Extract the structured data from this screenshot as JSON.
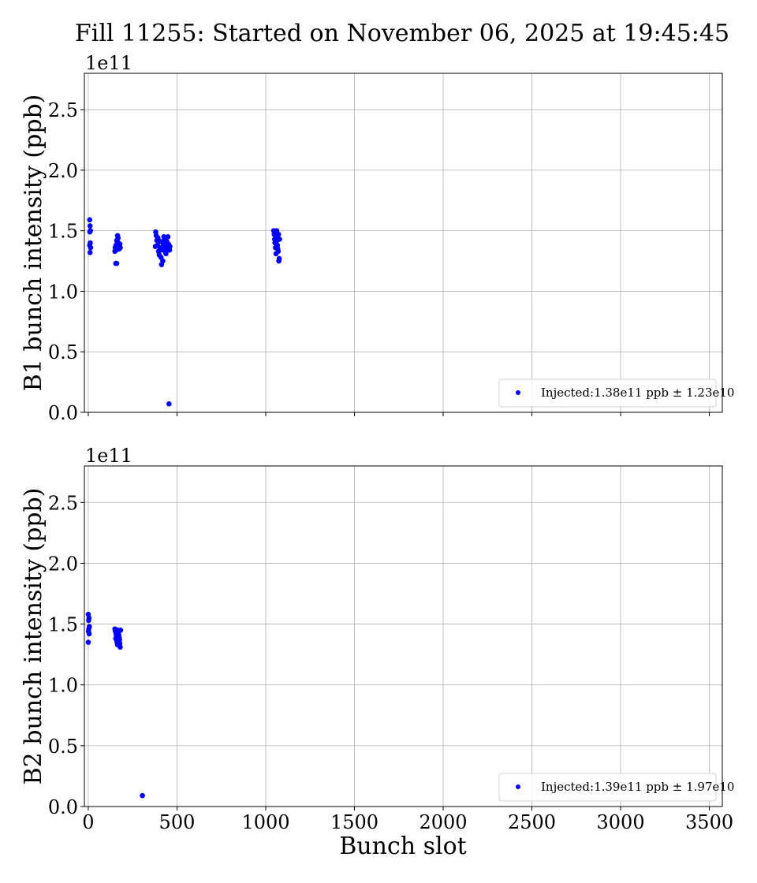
{
  "chart_data": [
    {
      "type": "scatter",
      "title": "Fill 11255: Started on November 06, 2025 at 19:45:45",
      "xlabel": "",
      "ylabel": "B1 bunch intensity (ppb)",
      "offset_label": "1e11",
      "xlim": [
        -22,
        3573
      ],
      "ylim": [
        0,
        2.8
      ],
      "xticks": [
        0,
        500,
        1000,
        1500,
        2000,
        2500,
        3000,
        3500
      ],
      "yticks": [
        "0.0",
        "0.5",
        "1.0",
        "1.5",
        "2.0",
        "2.5"
      ],
      "grid": true,
      "legend_position": "lower-right",
      "color": "#0000ff",
      "series": [
        {
          "name": "Injected:1.38e11 ppb ± 1.23e10",
          "points": [
            [
              8,
              1.59
            ],
            [
              10,
              1.54
            ],
            [
              12,
              1.5
            ],
            [
              9,
              1.49
            ],
            [
              11,
              1.4
            ],
            [
              8,
              1.38
            ],
            [
              13,
              1.36
            ],
            [
              10,
              1.32
            ],
            [
              155,
              1.23
            ],
            [
              160,
              1.23
            ],
            [
              152,
              1.36
            ],
            [
              156,
              1.38
            ],
            [
              160,
              1.42
            ],
            [
              165,
              1.46
            ],
            [
              168,
              1.44
            ],
            [
              170,
              1.4
            ],
            [
              172,
              1.37
            ],
            [
              175,
              1.35
            ],
            [
              178,
              1.39
            ],
            [
              158,
              1.34
            ],
            [
              163,
              1.41
            ],
            [
              180,
              1.36
            ],
            [
              150,
              1.33
            ],
            [
              167,
              1.38
            ],
            [
              380,
              1.49
            ],
            [
              383,
              1.46
            ],
            [
              386,
              1.42
            ],
            [
              390,
              1.38
            ],
            [
              378,
              1.37
            ],
            [
              393,
              1.44
            ],
            [
              396,
              1.33
            ],
            [
              400,
              1.3
            ],
            [
              404,
              1.36
            ],
            [
              407,
              1.41
            ],
            [
              410,
              1.28
            ],
            [
              413,
              1.22
            ],
            [
              416,
              1.34
            ],
            [
              420,
              1.25
            ],
            [
              423,
              1.39
            ],
            [
              426,
              1.45
            ],
            [
              430,
              1.43
            ],
            [
              433,
              1.36
            ],
            [
              436,
              1.32
            ],
            [
              440,
              1.38
            ],
            [
              443,
              1.41
            ],
            [
              446,
              1.35
            ],
            [
              449,
              1.45
            ],
            [
              452,
              1.39
            ],
            [
              455,
              0.07
            ],
            [
              458,
              1.34
            ],
            [
              460,
              1.37
            ],
            [
              438,
              1.31
            ],
            [
              428,
              1.4
            ],
            [
              1045,
              1.5
            ],
            [
              1048,
              1.47
            ],
            [
              1050,
              1.43
            ],
            [
              1052,
              1.4
            ],
            [
              1055,
              1.36
            ],
            [
              1058,
              1.31
            ],
            [
              1060,
              1.45
            ],
            [
              1062,
              1.5
            ],
            [
              1064,
              1.42
            ],
            [
              1066,
              1.38
            ],
            [
              1068,
              1.35
            ],
            [
              1070,
              1.33
            ],
            [
              1072,
              1.47
            ],
            [
              1074,
              1.25
            ],
            [
              1076,
              1.27
            ],
            [
              1078,
              1.43
            ]
          ]
        }
      ]
    },
    {
      "type": "scatter",
      "xlabel": "Bunch slot",
      "ylabel": "B2 bunch intensity (ppb)",
      "offset_label": "1e11",
      "xlim": [
        -22,
        3573
      ],
      "ylim": [
        0,
        2.8
      ],
      "xticks": [
        0,
        500,
        1000,
        1500,
        2000,
        2500,
        3000,
        3500
      ],
      "yticks": [
        "0.0",
        "0.5",
        "1.0",
        "1.5",
        "2.0",
        "2.5"
      ],
      "grid": true,
      "legend_position": "lower-right",
      "color": "#0000ff",
      "series": [
        {
          "name": "Injected:1.39e11 ppb ± 1.97e10",
          "points": [
            [
              0,
              1.58
            ],
            [
              4,
              1.55
            ],
            [
              2,
              1.53
            ],
            [
              6,
              1.48
            ],
            [
              3,
              1.46
            ],
            [
              1,
              1.44
            ],
            [
              5,
              1.42
            ],
            [
              0,
              1.35
            ],
            [
              150,
              1.46
            ],
            [
              153,
              1.44
            ],
            [
              156,
              1.42
            ],
            [
              158,
              1.4
            ],
            [
              160,
              1.37
            ],
            [
              162,
              1.35
            ],
            [
              165,
              1.33
            ],
            [
              168,
              1.45
            ],
            [
              170,
              1.43
            ],
            [
              172,
              1.41
            ],
            [
              174,
              1.39
            ],
            [
              176,
              1.37
            ],
            [
              178,
              1.34
            ],
            [
              180,
              1.31
            ],
            [
              182,
              1.45
            ],
            [
              155,
              1.38
            ],
            [
              166,
              1.36
            ],
            [
              305,
              0.09
            ]
          ]
        }
      ]
    }
  ]
}
